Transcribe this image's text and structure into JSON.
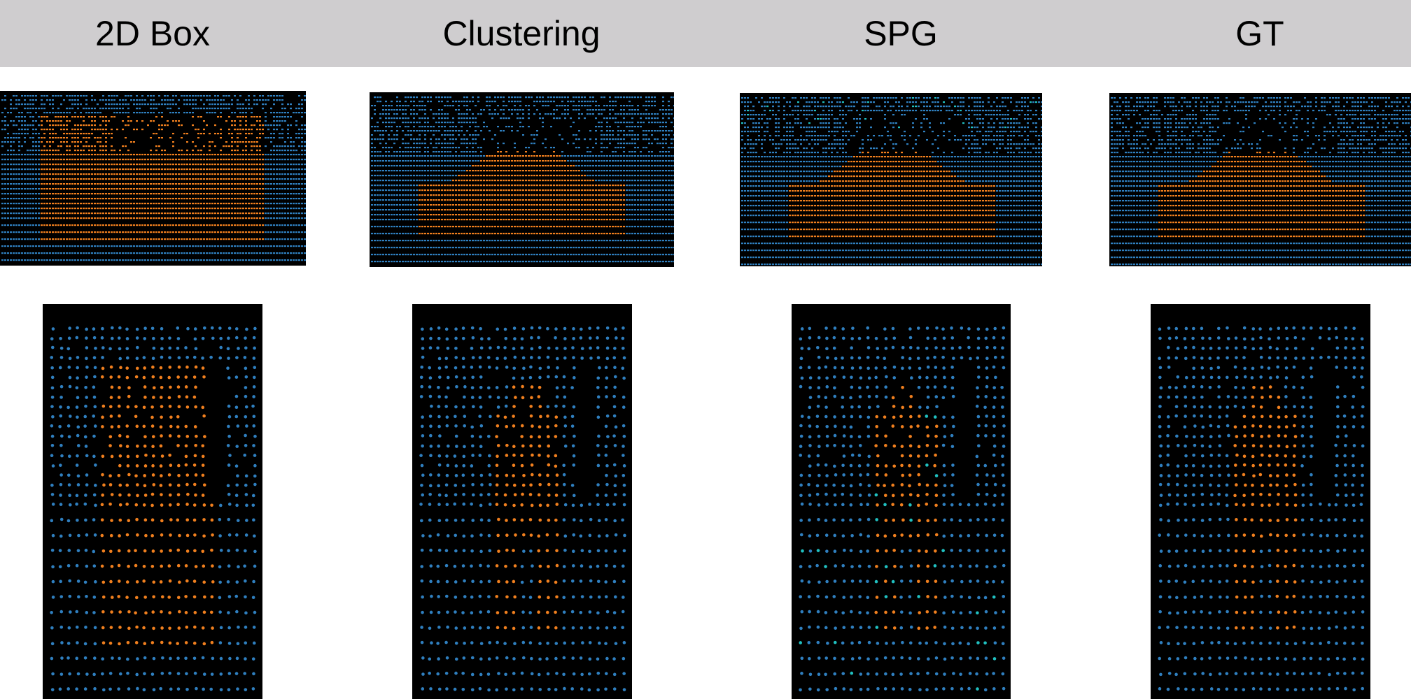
{
  "columns": [
    {
      "title": "2D Box"
    },
    {
      "title": "Clustering"
    },
    {
      "title": "SPG"
    },
    {
      "title": "GT"
    }
  ],
  "rows": [
    {
      "subject": "car"
    },
    {
      "subject": "pedestrian"
    }
  ],
  "colors": {
    "header_bg": "#cfcdcf",
    "background_points": "#2f7fbf",
    "foreground_points": "#f07f1e",
    "generated_points": "#20c0c0",
    "panel_bg": "#000000"
  }
}
